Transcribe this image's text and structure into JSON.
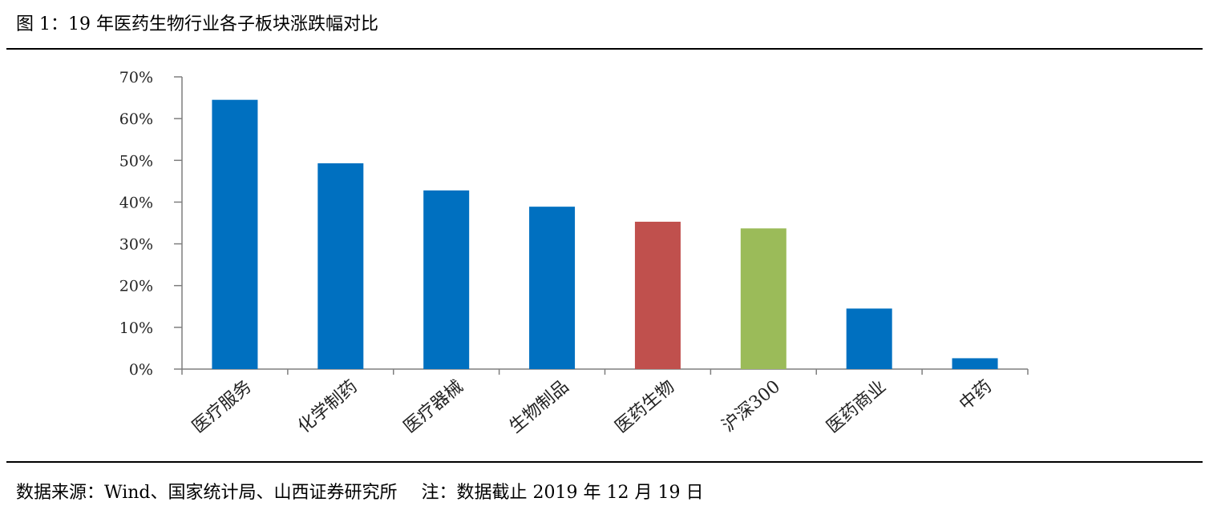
{
  "figure": {
    "title": "图 1：19 年医药生物行业各子板块涨跌幅对比",
    "source": "数据来源：Wind、国家统计局、山西证券研究所",
    "note": "注：数据截止 2019 年 12 月 19 日"
  },
  "colors": {
    "default_bar": "#0070C0",
    "highlight_bar": "#C0504D",
    "benchmark_bar": "#9BBB59",
    "axis": "#7f7f7f"
  },
  "chart_data": {
    "type": "bar",
    "title": "",
    "xlabel": "",
    "ylabel": "",
    "categories": [
      "医疗服务",
      "化学制药",
      "医疗器械",
      "生物制品",
      "医药生物",
      "沪深300",
      "医药商业",
      "中药"
    ],
    "values": [
      64.5,
      49.3,
      42.8,
      38.9,
      35.3,
      33.7,
      14.5,
      2.6
    ],
    "bar_colors": [
      "#0070C0",
      "#0070C0",
      "#0070C0",
      "#0070C0",
      "#C0504D",
      "#9BBB59",
      "#0070C0",
      "#0070C0"
    ],
    "unit": "%",
    "ylim": [
      0,
      70
    ],
    "yticks": [
      0,
      10,
      20,
      30,
      40,
      50,
      60,
      70
    ],
    "ytick_labels": [
      "0%",
      "10%",
      "20%",
      "30%",
      "40%",
      "50%",
      "60%",
      "70%"
    ],
    "grid": false,
    "legend": "none"
  }
}
